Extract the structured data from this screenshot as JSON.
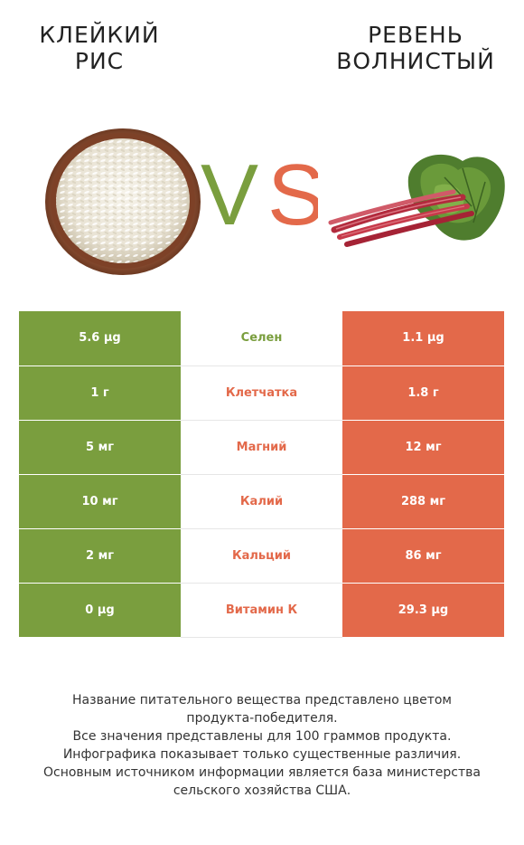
{
  "colors": {
    "left": "#7a9e3e",
    "right": "#e3694a"
  },
  "food_left": {
    "title_line1": "Клейкий",
    "title_line2": "рис",
    "image": "bowl-of-rice"
  },
  "food_right": {
    "title_line1": "Ревень",
    "title_line2": "волнистый",
    "image": "rhubarb-stalks"
  },
  "vs": {
    "v": "V",
    "s": "S"
  },
  "rows": [
    {
      "nutrient": "Селен",
      "left": "5.6 µg",
      "right": "1.1 µg",
      "winner": "left"
    },
    {
      "nutrient": "Клетчатка",
      "left": "1 г",
      "right": "1.8 г",
      "winner": "right"
    },
    {
      "nutrient": "Магний",
      "left": "5 мг",
      "right": "12 мг",
      "winner": "right"
    },
    {
      "nutrient": "Калий",
      "left": "10 мг",
      "right": "288 мг",
      "winner": "right"
    },
    {
      "nutrient": "Кальций",
      "left": "2 мг",
      "right": "86 мг",
      "winner": "right"
    },
    {
      "nutrient": "Витамин К",
      "left": "0 µg",
      "right": "29.3 µg",
      "winner": "right"
    }
  ],
  "footer": {
    "line1": "Название питательного вещества представлено цветом",
    "line2": "продукта-победителя.",
    "line3": "Все значения представлены для 100 граммов продукта.",
    "line4": "Инфографика показывает только существенные различия.",
    "line5": "Основным источником информации является база министерства",
    "line6": "сельского хозяйства США."
  }
}
